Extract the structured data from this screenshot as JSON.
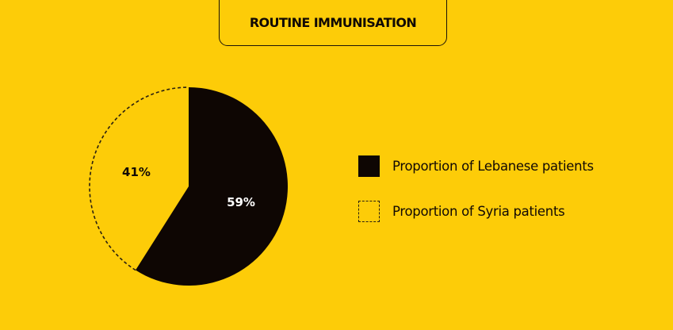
{
  "chart_data": {
    "type": "pie",
    "title": "ROUTINE IMMUNISATION",
    "slices": [
      {
        "name": "Proportion of Lebanese patients",
        "value": 59,
        "label": "59%",
        "style": "solid",
        "color": "#0e0603"
      },
      {
        "name": "Proportion of Syria patients",
        "value": 41,
        "label": "41%",
        "style": "dashed-outline",
        "color": "#FDCC08"
      }
    ],
    "legend_placement": "right",
    "background": "#FDCC08"
  }
}
